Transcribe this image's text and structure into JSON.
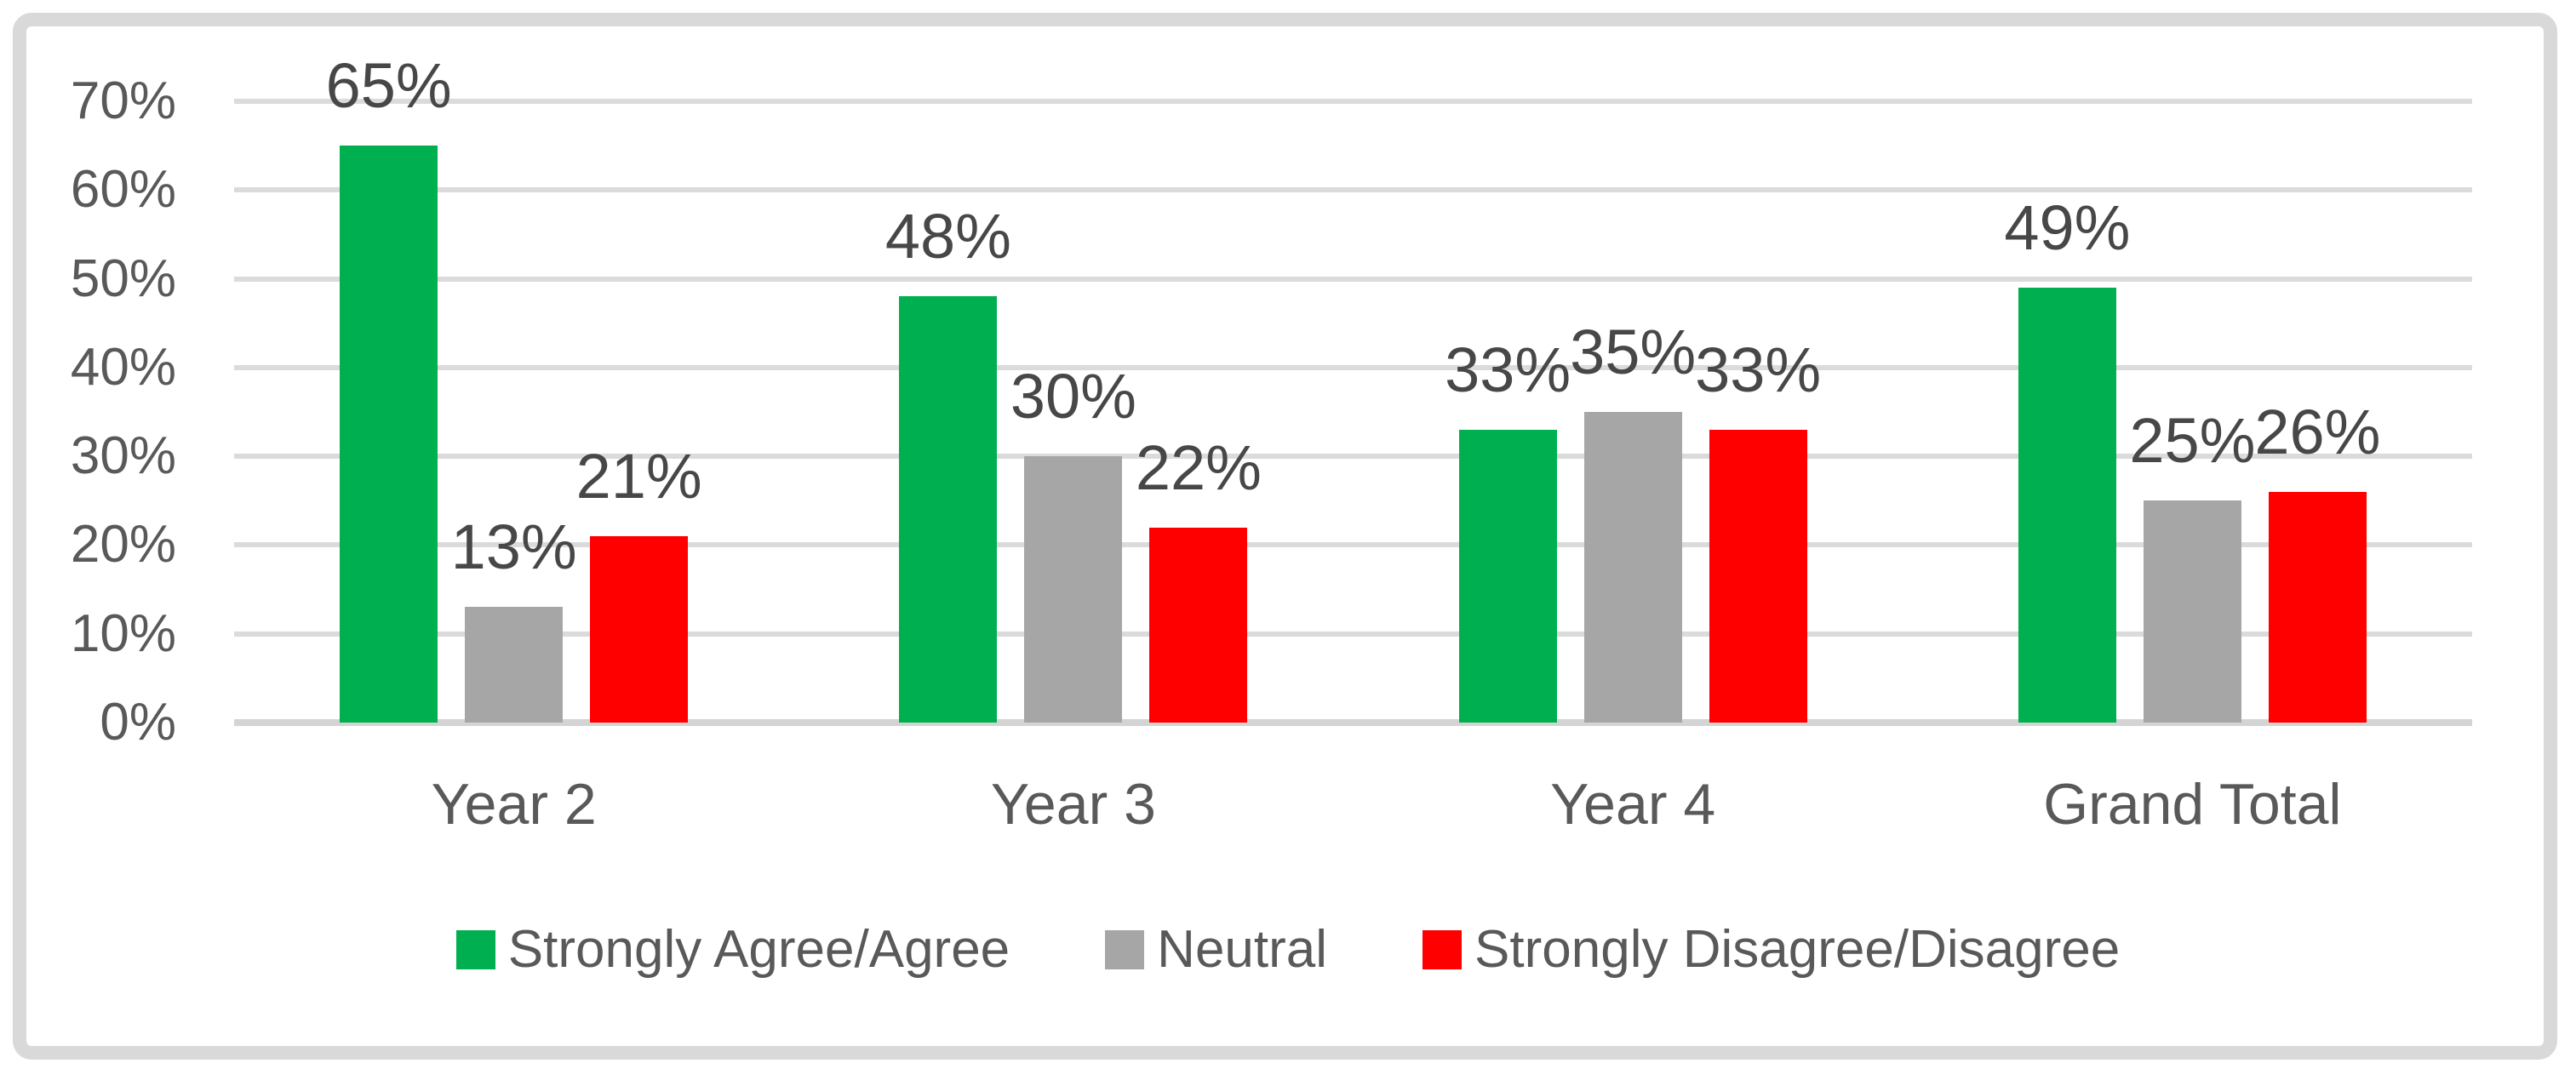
{
  "chart_data": {
    "type": "bar",
    "title": "",
    "categories": [
      "Year 2",
      "Year 3",
      "Year 4",
      "Grand Total"
    ],
    "series": [
      {
        "name": "Strongly Agree/Agree",
        "color": "#00B050",
        "values": [
          65,
          48,
          33,
          49
        ],
        "labels": [
          "65%",
          "48%",
          "33%",
          "49%"
        ]
      },
      {
        "name": "Neutral",
        "color": "#A6A6A6",
        "values": [
          13,
          30,
          35,
          25
        ],
        "labels": [
          "13%",
          "30%",
          "35%",
          "25%"
        ]
      },
      {
        "name": "Strongly Disagree/Disagree",
        "color": "#FE0000",
        "values": [
          21,
          22,
          33,
          26
        ],
        "labels": [
          "21%",
          "22%",
          "33%",
          "26%"
        ]
      }
    ],
    "y_axis": {
      "min": 0,
      "max": 70,
      "step": 10,
      "tick_labels_top_to_bottom": [
        "70%",
        "60%",
        "50%",
        "40%",
        "30%",
        "20%",
        "10%",
        "0%"
      ]
    },
    "grid": true,
    "legend_position": "bottom",
    "colors": {
      "gridline": "#DBDBDB",
      "axis_line": "#D4D4D4",
      "frame_border": "#D9D9D9",
      "axis_text": "#595959",
      "data_label_text": "#474747",
      "background": "#FFFFFF"
    }
  }
}
